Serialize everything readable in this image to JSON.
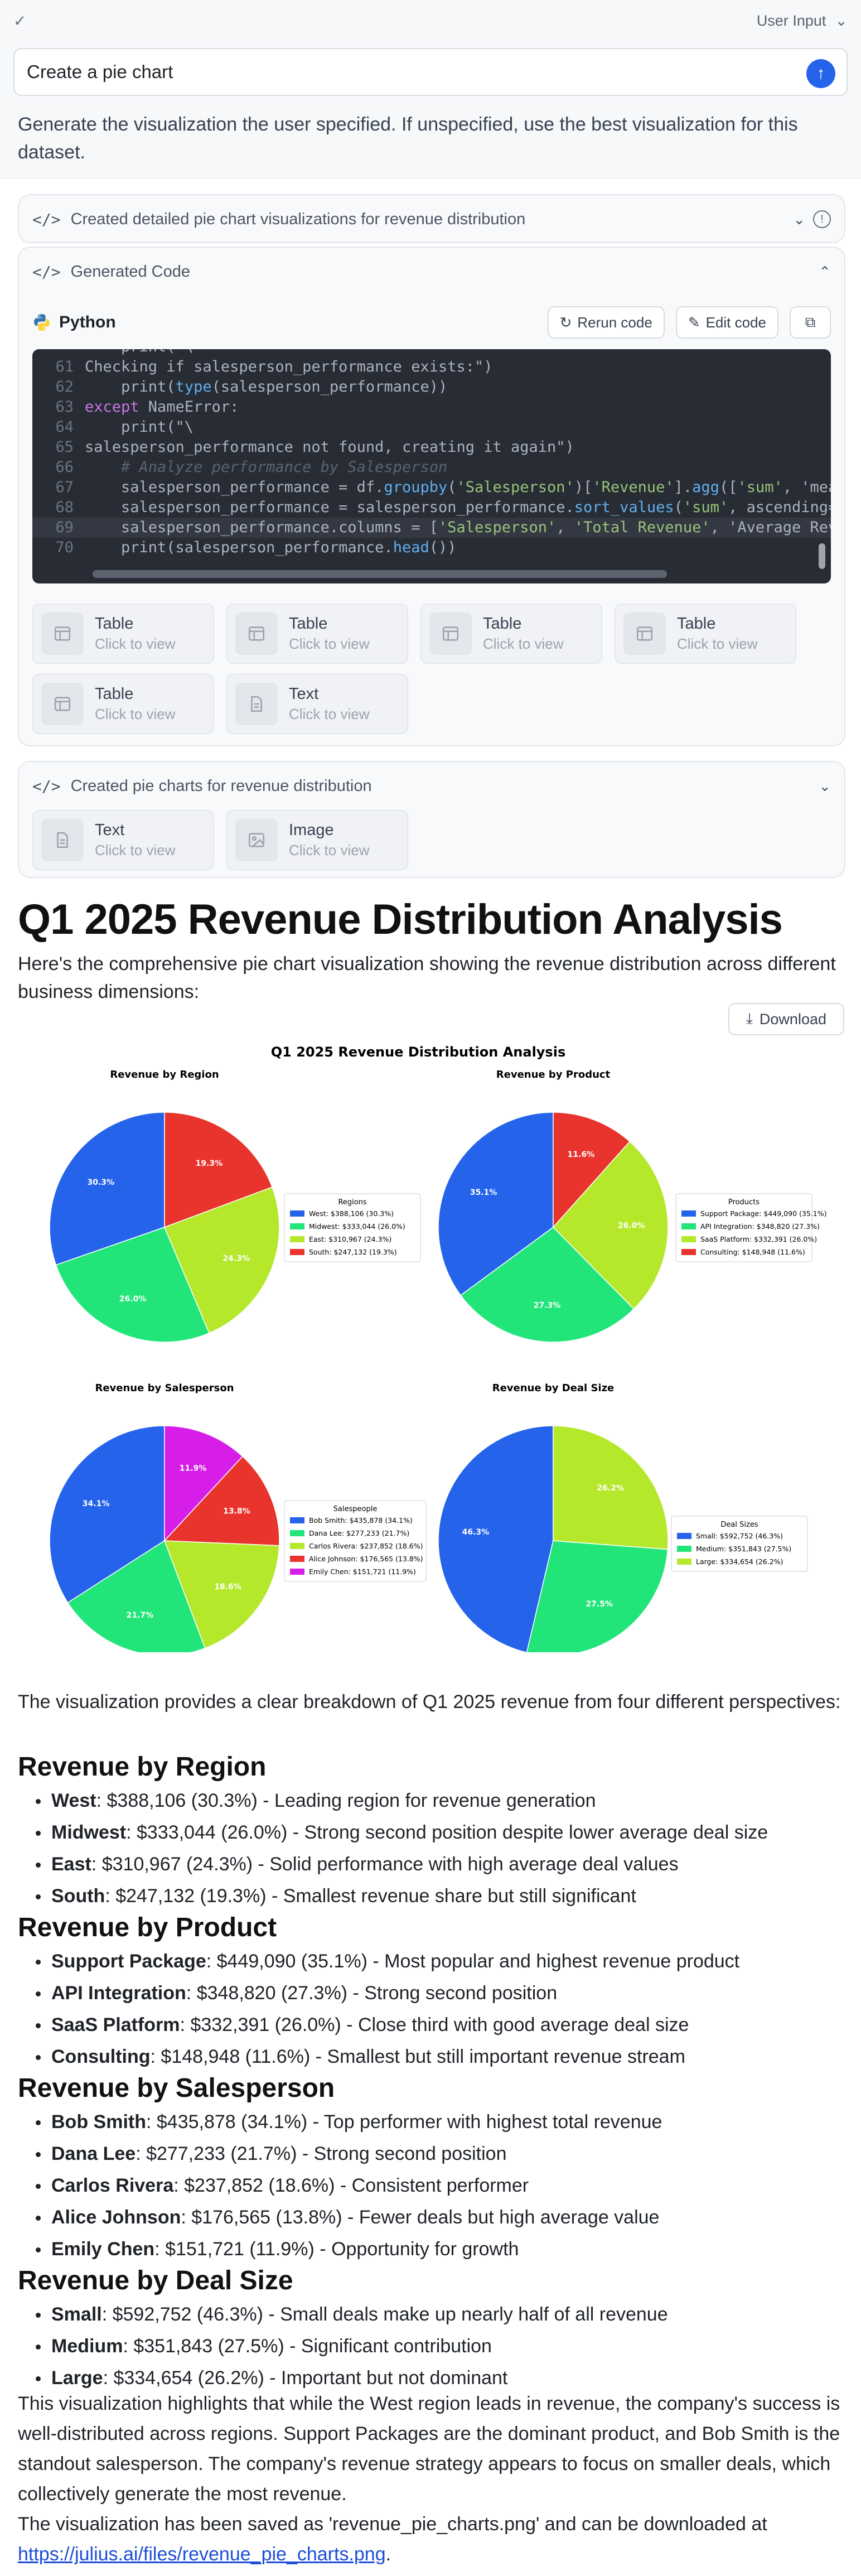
{
  "user": {
    "header_label": "User Input",
    "prompt": "Create a pie chart",
    "system_text": "Generate the visualization the user specified. If unspecified, use the best visualization for this dataset."
  },
  "steps": {
    "step1_title": "Created detailed pie chart visualizations for revenue distribution",
    "step2_title": "Generated Code",
    "language": "Python",
    "rerun_label": "Rerun code",
    "edit_label": "Edit code",
    "code_lines": [
      {
        "n": "61",
        "t": "Checking if salesperson_performance exists:\")"
      },
      {
        "n": "62",
        "t": "    print(type(salesperson_performance))"
      },
      {
        "n": "63",
        "t": "except NameError:"
      },
      {
        "n": "64",
        "t": "    print(\"\\"
      },
      {
        "n": "65",
        "t": "salesperson_performance not found, creating it again\")"
      },
      {
        "n": "66",
        "t": "    # Analyze performance by Salesperson"
      },
      {
        "n": "67",
        "t": "    salesperson_performance = df.groupby('Salesperson')['Revenue'].agg(['sum', 'mean"
      },
      {
        "n": "68",
        "t": "    salesperson_performance = salesperson_performance.sort_values('sum', ascending=F"
      },
      {
        "n": "69",
        "t": "    salesperson_performance.columns = ['Salesperson', 'Total Revenue', 'Average Reve"
      },
      {
        "n": "70",
        "t": "    print(salesperson_performance.head())"
      }
    ],
    "tiles": [
      {
        "title": "Table",
        "sub": "Click to view",
        "icon": "table-icon"
      },
      {
        "title": "Table",
        "sub": "Click to view",
        "icon": "table-icon"
      },
      {
        "title": "Table",
        "sub": "Click to view",
        "icon": "table-icon"
      },
      {
        "title": "Table",
        "sub": "Click to view",
        "icon": "table-icon"
      },
      {
        "title": "Table",
        "sub": "Click to view",
        "icon": "table-icon"
      },
      {
        "title": "Text",
        "sub": "Click to view",
        "icon": "document-icon"
      }
    ],
    "step3_title": "Created pie charts for revenue distribution",
    "tiles2": [
      {
        "title": "Text",
        "sub": "Click to view",
        "icon": "document-icon"
      },
      {
        "title": "Image",
        "sub": "Click to view",
        "icon": "image-icon"
      }
    ]
  },
  "result": {
    "title": "Q1 2025 Revenue Distribution Analysis",
    "intro": "Here's the comprehensive pie chart visualization showing the revenue distribution across different business dimensions:",
    "download_label": "Download",
    "lead": "The visualization provides a clear breakdown of Q1 2025 revenue from four different perspectives:",
    "sections": [
      {
        "heading": "Revenue by Region",
        "items": [
          {
            "name": "West",
            "rest": ": $388,106 (30.3%) - Leading region for revenue generation"
          },
          {
            "name": "Midwest",
            "rest": ": $333,044 (26.0%) - Strong second position despite lower average deal size"
          },
          {
            "name": "East",
            "rest": ": $310,967 (24.3%) - Solid performance with high average deal values"
          },
          {
            "name": "South",
            "rest": ": $247,132 (19.3%) - Smallest revenue share but still significant"
          }
        ]
      },
      {
        "heading": "Revenue by Product",
        "items": [
          {
            "name": "Support Package",
            "rest": ": $449,090 (35.1%) - Most popular and highest revenue product"
          },
          {
            "name": "API Integration",
            "rest": ": $348,820 (27.3%) - Strong second position"
          },
          {
            "name": "SaaS Platform",
            "rest": ": $332,391 (26.0%) - Close third with good average deal size"
          },
          {
            "name": "Consulting",
            "rest": ": $148,948 (11.6%) - Smallest but still important revenue stream"
          }
        ]
      },
      {
        "heading": "Revenue by Salesperson",
        "items": [
          {
            "name": "Bob Smith",
            "rest": ": $435,878 (34.1%) - Top performer with highest total revenue"
          },
          {
            "name": "Dana Lee",
            "rest": ": $277,233 (21.7%) - Strong second position"
          },
          {
            "name": "Carlos Rivera",
            "rest": ": $237,852 (18.6%) - Consistent performer"
          },
          {
            "name": "Alice Johnson",
            "rest": ": $176,565 (13.8%) - Fewer deals but high average value"
          },
          {
            "name": "Emily Chen",
            "rest": ": $151,721 (11.9%) - Opportunity for growth"
          }
        ]
      },
      {
        "heading": "Revenue by Deal Size",
        "items": [
          {
            "name": "Small",
            "rest": ": $592,752 (46.3%) - Small deals make up nearly half of all revenue"
          },
          {
            "name": "Medium",
            "rest": ": $351,843 (27.5%) - Significant contribution"
          },
          {
            "name": "Large",
            "rest": ": $334,654 (26.2%) - Important but not dominant"
          }
        ]
      }
    ],
    "conclusion": "This visualization highlights that while the West region leads in revenue, the company's success is well-distributed across regions. Support Packages are the dominant product, and Bob Smith is the standout salesperson. The company's revenue strategy appears to focus on smaller deals, which collectively generate the most revenue.",
    "saved_text": "The visualization has been saved as 'revenue_pie_charts.png' and can be downloaded at ",
    "saved_link": "https://julius.ai/files/revenue_pie_charts.png",
    "saved_end": "."
  },
  "chart_data": {
    "type": "pie",
    "title": "Q1 2025 Revenue Distribution Analysis",
    "colors": [
      "#2563eb",
      "#22e57a",
      "#b5e82b",
      "#e8342c",
      "#d71ee8"
    ],
    "pies": [
      {
        "title": "Revenue by Region",
        "legend_title": "Regions",
        "labels": [
          "West: $388,106 (30.3%)",
          "Midwest: $333,044 (26.0%)",
          "East: $310,967 (24.3%)",
          "South: $247,132 (19.3%)"
        ],
        "values": [
          30.3,
          26.0,
          24.3,
          19.3
        ]
      },
      {
        "title": "Revenue by Product",
        "legend_title": "Products",
        "labels": [
          "Support Package: $449,090 (35.1%)",
          "API Integration: $348,820 (27.3%)",
          "SaaS Platform: $332,391 (26.0%)",
          "Consulting: $148,948 (11.6%)"
        ],
        "values": [
          35.1,
          27.3,
          26.0,
          11.6
        ]
      },
      {
        "title": "Revenue by Salesperson",
        "legend_title": "Salespeople",
        "labels": [
          "Bob Smith: $435,878 (34.1%)",
          "Dana Lee: $277,233 (21.7%)",
          "Carlos Rivera: $237,852 (18.6%)",
          "Alice Johnson: $176,565 (13.8%)",
          "Emily Chen: $151,721 (11.9%)"
        ],
        "values": [
          34.1,
          21.7,
          18.6,
          13.8,
          11.9
        ]
      },
      {
        "title": "Revenue by Deal Size",
        "legend_title": "Deal Sizes",
        "labels": [
          "Small: $592,752 (46.3%)",
          "Medium: $351,843 (27.5%)",
          "Large: $334,654 (26.2%)"
        ],
        "values": [
          46.3,
          27.5,
          26.2
        ]
      }
    ]
  }
}
